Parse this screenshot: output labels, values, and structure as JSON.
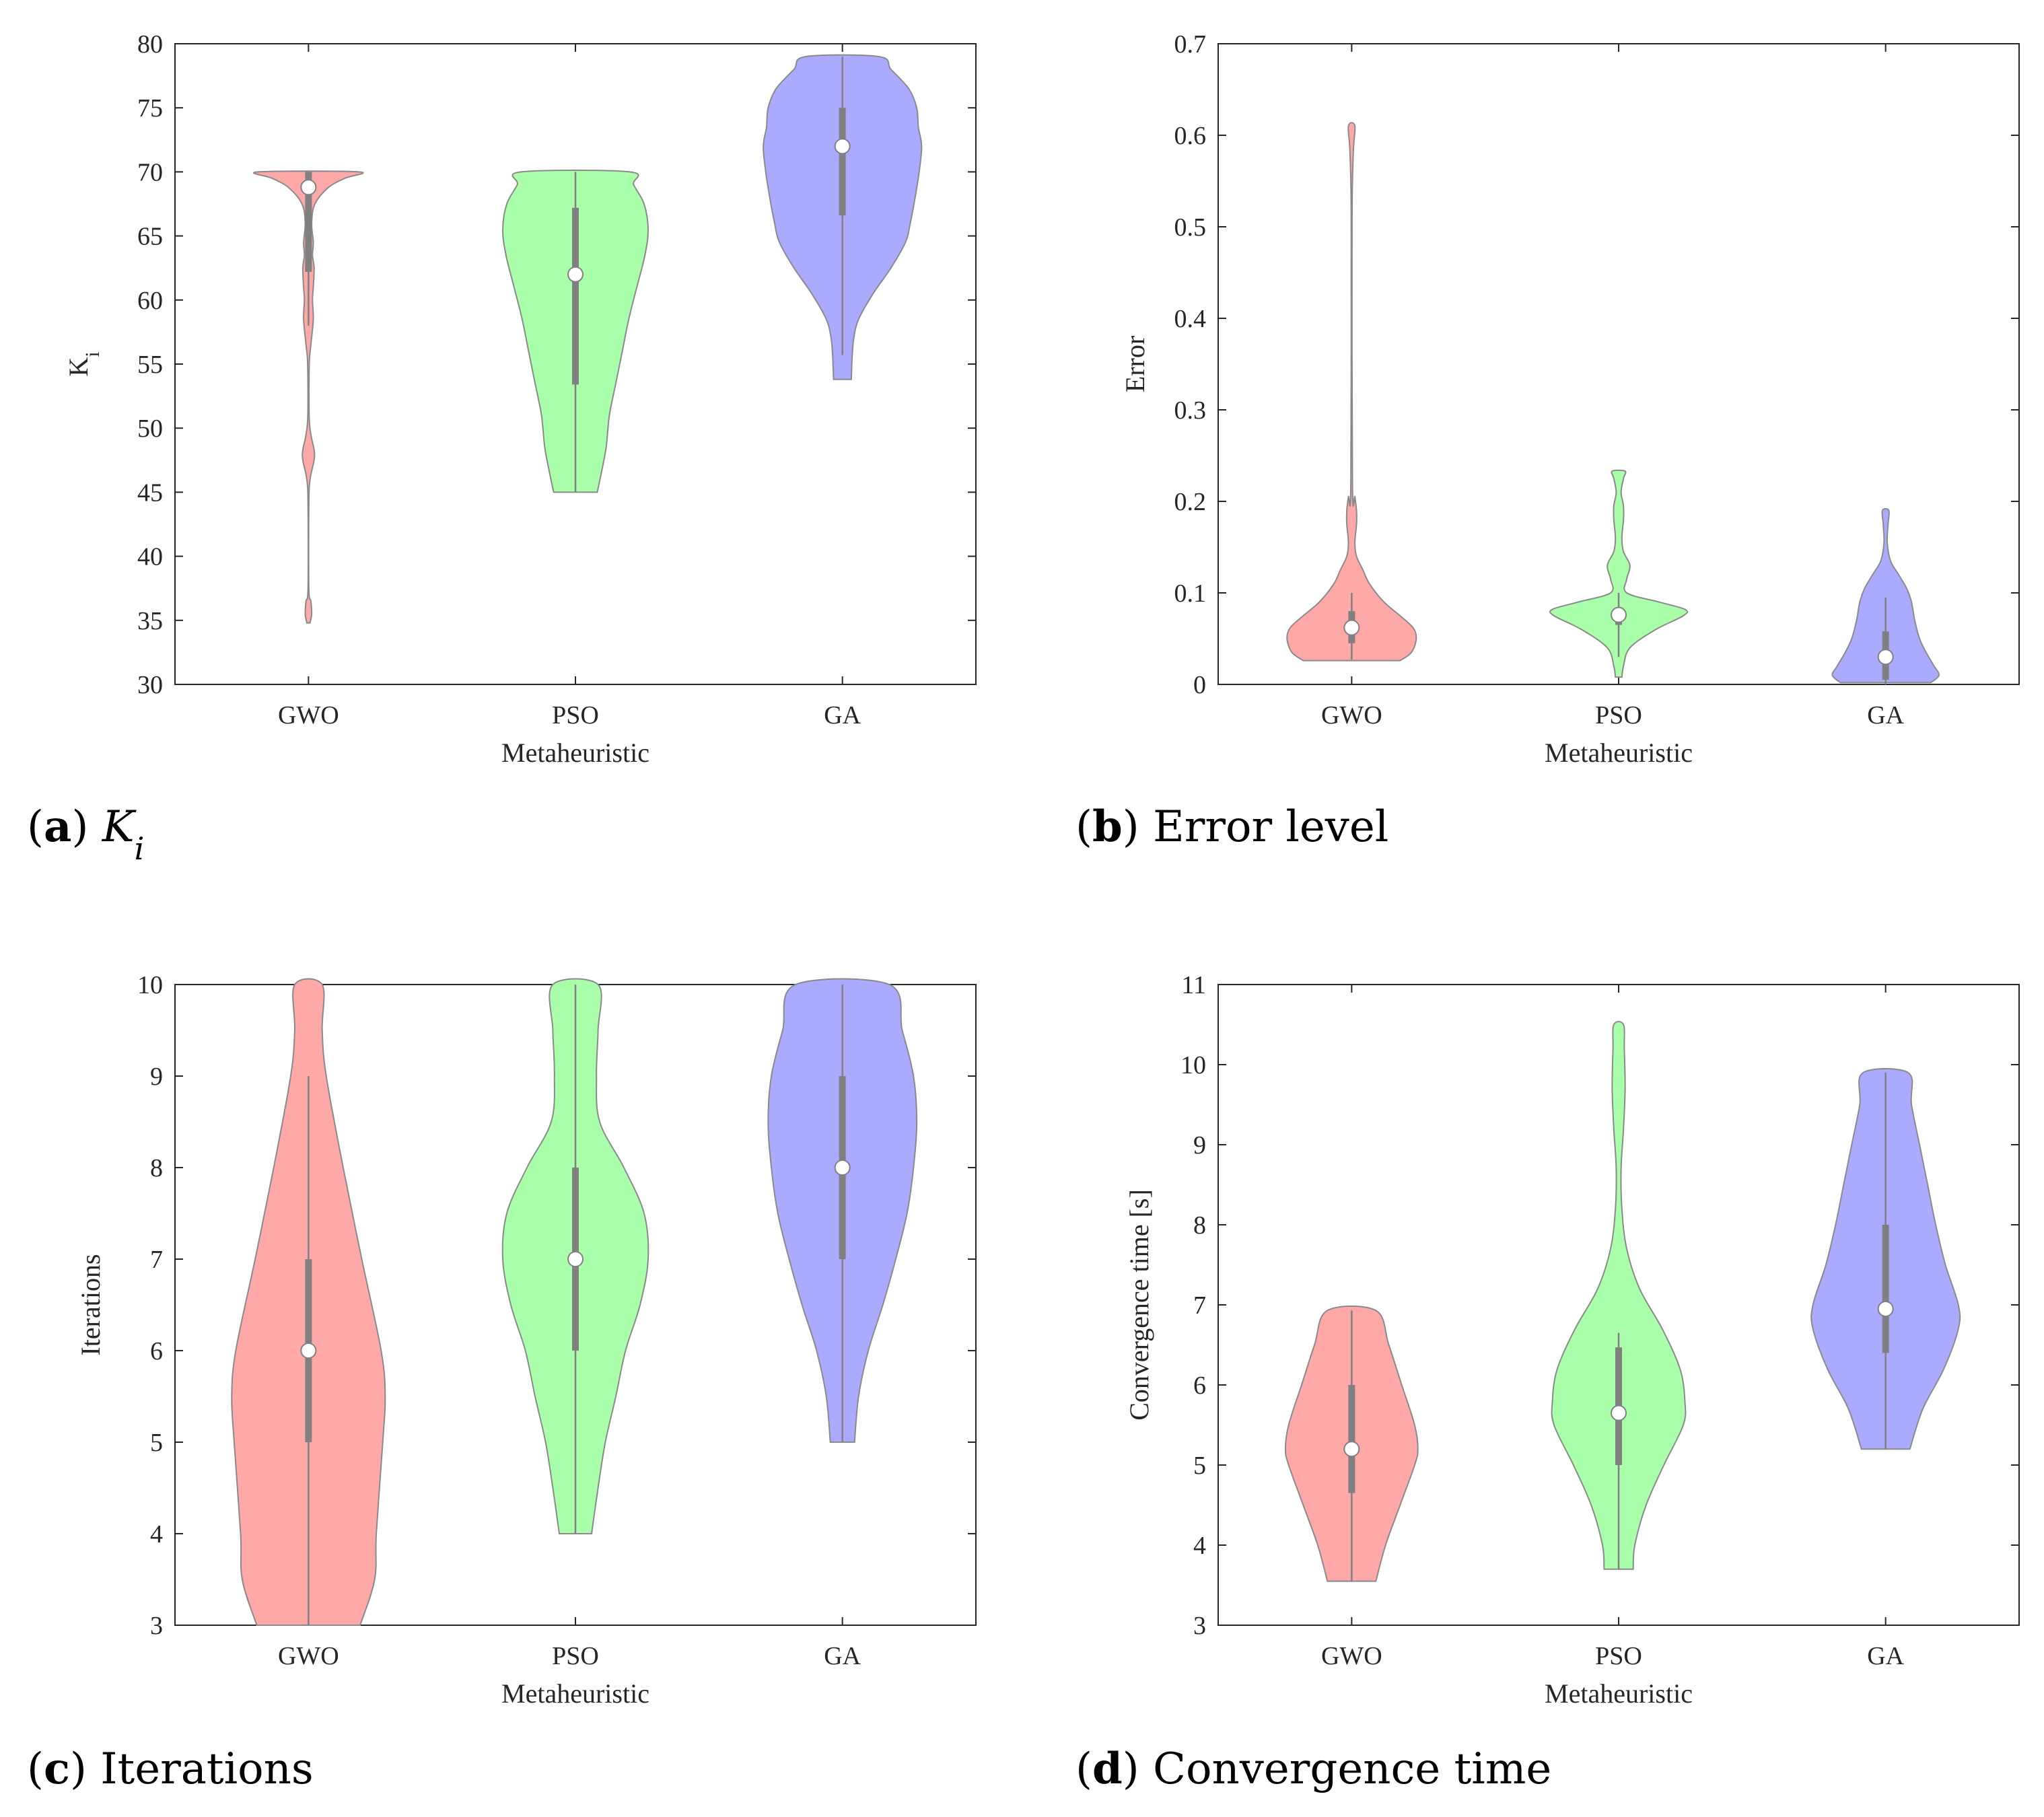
{
  "colors": {
    "GWO": "#ffa8a8",
    "PSO": "#aaffaa",
    "GA": "#aaaaff",
    "violin_edge": "#8a8a8a",
    "box": "#808080",
    "median_fill": "#ffffff",
    "axes": "#262626"
  },
  "chart_data": [
    {
      "type": "violin",
      "panel": "a",
      "caption_letter": "a",
      "caption_text": "K",
      "caption_subscript": "i",
      "xlabel": "Metaheuristic",
      "ylabel": "K",
      "ylabel_subscript": "i",
      "categories": [
        "GWO",
        "PSO",
        "GA"
      ],
      "ylim": [
        30,
        80
      ],
      "yticks": [
        30,
        35,
        40,
        45,
        50,
        55,
        60,
        65,
        70,
        75,
        80
      ],
      "ytick_labels": [
        "30",
        "35",
        "40",
        "45",
        "50",
        "55",
        "60",
        "65",
        "70",
        "75",
        "80"
      ],
      "series": [
        {
          "category": "GWO",
          "median": 68.8,
          "q1": 62.2,
          "q3": 70,
          "whisker_low": 58,
          "whisker_high": 70,
          "profile": [
            [
              34.8,
              0.02
            ],
            [
              35.5,
              0.04
            ],
            [
              36.5,
              0.03
            ],
            [
              37.5,
              0.005
            ],
            [
              44,
              0.005
            ],
            [
              46,
              0.02
            ],
            [
              47.5,
              0.07
            ],
            [
              48.3,
              0.07
            ],
            [
              49.5,
              0.03
            ],
            [
              51,
              0.008
            ],
            [
              55,
              0.01
            ],
            [
              56.5,
              0.03
            ],
            [
              58.5,
              0.06
            ],
            [
              60,
              0.05
            ],
            [
              61,
              0.06
            ],
            [
              62.5,
              0.07
            ],
            [
              63.5,
              0.05
            ],
            [
              64.5,
              0.06
            ],
            [
              66,
              0.04
            ],
            [
              67.5,
              0.08
            ],
            [
              68.8,
              0.25
            ],
            [
              69.5,
              0.45
            ],
            [
              70,
              0.62
            ]
          ]
        },
        {
          "category": "PSO",
          "median": 62,
          "q1": 53.4,
          "q3": 67.2,
          "whisker_low": 45,
          "whisker_high": 70,
          "profile": [
            [
              45,
              0.27
            ],
            [
              46.5,
              0.32
            ],
            [
              48.5,
              0.38
            ],
            [
              51,
              0.42
            ],
            [
              53.5,
              0.5
            ],
            [
              56,
              0.58
            ],
            [
              58.5,
              0.66
            ],
            [
              61,
              0.76
            ],
            [
              63.5,
              0.86
            ],
            [
              65.5,
              0.9
            ],
            [
              67.5,
              0.85
            ],
            [
              69,
              0.72
            ],
            [
              70,
              0.67
            ]
          ]
        },
        {
          "category": "GA",
          "median": 72,
          "q1": 66.6,
          "q3": 75,
          "whisker_low": 55.7,
          "whisker_high": 79,
          "profile": [
            [
              53.8,
              0.11
            ],
            [
              55.5,
              0.12
            ],
            [
              57,
              0.14
            ],
            [
              58.5,
              0.2
            ],
            [
              60.5,
              0.38
            ],
            [
              62.5,
              0.6
            ],
            [
              64.5,
              0.78
            ],
            [
              66,
              0.84
            ],
            [
              68,
              0.9
            ],
            [
              70,
              0.95
            ],
            [
              72,
              0.98
            ],
            [
              73.5,
              0.94
            ],
            [
              75,
              0.92
            ],
            [
              76.5,
              0.82
            ],
            [
              78,
              0.6
            ],
            [
              79,
              0.45
            ]
          ]
        }
      ]
    },
    {
      "type": "violin",
      "panel": "b",
      "caption_letter": "b",
      "caption_text": "Error level",
      "xlabel": "Metaheuristic",
      "ylabel": "Error",
      "categories": [
        "GWO",
        "PSO",
        "GA"
      ],
      "ylim": [
        0,
        0.7
      ],
      "yticks": [
        0,
        0.1,
        0.2,
        0.3,
        0.4,
        0.5,
        0.6,
        0.7
      ],
      "ytick_labels": [
        "0",
        "0.1",
        "0.2",
        "0.3",
        "0.4",
        "0.5",
        "0.6",
        "0.7"
      ],
      "series": [
        {
          "category": "GWO",
          "median": 0.062,
          "q1": 0.045,
          "q3": 0.08,
          "whisker_low": 0.027,
          "whisker_high": 0.1,
          "profile": [
            [
              0.026,
              0.6
            ],
            [
              0.035,
              0.74
            ],
            [
              0.05,
              0.8
            ],
            [
              0.062,
              0.76
            ],
            [
              0.075,
              0.6
            ],
            [
              0.09,
              0.4
            ],
            [
              0.11,
              0.22
            ],
            [
              0.125,
              0.14
            ],
            [
              0.14,
              0.06
            ],
            [
              0.155,
              0.04
            ],
            [
              0.175,
              0.06
            ],
            [
              0.19,
              0.06
            ],
            [
              0.205,
              0.04
            ],
            [
              0.22,
              0.01
            ],
            [
              0.5,
              0.005
            ],
            [
              0.58,
              0.02
            ],
            [
              0.61,
              0.04
            ]
          ]
        },
        {
          "category": "PSO",
          "median": 0.076,
          "q1": 0.065,
          "q3": 0.082,
          "whisker_low": 0.03,
          "whisker_high": 0.1,
          "profile": [
            [
              0.008,
              0.04
            ],
            [
              0.02,
              0.06
            ],
            [
              0.04,
              0.14
            ],
            [
              0.06,
              0.46
            ],
            [
              0.075,
              0.8
            ],
            [
              0.082,
              0.82
            ],
            [
              0.09,
              0.5
            ],
            [
              0.1,
              0.1
            ],
            [
              0.115,
              0.1
            ],
            [
              0.13,
              0.14
            ],
            [
              0.145,
              0.06
            ],
            [
              0.16,
              0.04
            ],
            [
              0.18,
              0.06
            ],
            [
              0.195,
              0.06
            ],
            [
              0.21,
              0.03
            ],
            [
              0.225,
              0.06
            ],
            [
              0.233,
              0.08
            ]
          ]
        },
        {
          "category": "GA",
          "median": 0.03,
          "q1": 0.005,
          "q3": 0.058,
          "whisker_low": 0,
          "whisker_high": 0.095,
          "profile": [
            [
              0.002,
              0.56
            ],
            [
              0.01,
              0.66
            ],
            [
              0.02,
              0.6
            ],
            [
              0.035,
              0.5
            ],
            [
              0.05,
              0.42
            ],
            [
              0.07,
              0.36
            ],
            [
              0.09,
              0.32
            ],
            [
              0.105,
              0.26
            ],
            [
              0.12,
              0.16
            ],
            [
              0.135,
              0.06
            ],
            [
              0.155,
              0.02
            ],
            [
              0.175,
              0.03
            ],
            [
              0.19,
              0.04
            ]
          ]
        }
      ]
    },
    {
      "type": "violin",
      "panel": "c",
      "caption_letter": "c",
      "caption_text": "Iterations",
      "xlabel": "Metaheuristic",
      "ylabel": "Iterations",
      "categories": [
        "GWO",
        "PSO",
        "GA"
      ],
      "ylim": [
        3,
        10
      ],
      "yticks": [
        3,
        4,
        5,
        6,
        7,
        8,
        9,
        10
      ],
      "ytick_labels": [
        "3",
        "4",
        "5",
        "6",
        "7",
        "8",
        "9",
        "10"
      ],
      "series": [
        {
          "category": "GWO",
          "median": 6,
          "q1": 5,
          "q3": 7,
          "whisker_low": 3,
          "whisker_high": 9,
          "profile": [
            [
              3,
              0.64
            ],
            [
              3.5,
              0.82
            ],
            [
              4,
              0.84
            ],
            [
              5,
              0.92
            ],
            [
              5.5,
              0.95
            ],
            [
              6,
              0.9
            ],
            [
              7,
              0.66
            ],
            [
              8,
              0.43
            ],
            [
              9,
              0.22
            ],
            [
              9.5,
              0.17
            ],
            [
              10,
              0.17
            ]
          ]
        },
        {
          "category": "PSO",
          "median": 7,
          "q1": 6,
          "q3": 8,
          "whisker_low": 4,
          "whisker_high": 10,
          "profile": [
            [
              4,
              0.2
            ],
            [
              4.5,
              0.28
            ],
            [
              5,
              0.37
            ],
            [
              5.5,
              0.5
            ],
            [
              6,
              0.62
            ],
            [
              6.5,
              0.8
            ],
            [
              7,
              0.9
            ],
            [
              7.5,
              0.85
            ],
            [
              8,
              0.6
            ],
            [
              8.5,
              0.3
            ],
            [
              9,
              0.26
            ],
            [
              9.5,
              0.28
            ],
            [
              10,
              0.28
            ]
          ]
        },
        {
          "category": "GA",
          "median": 8,
          "q1": 7,
          "q3": 9,
          "whisker_low": 5,
          "whisker_high": 10,
          "profile": [
            [
              5,
              0.15
            ],
            [
              5.5,
              0.2
            ],
            [
              6,
              0.32
            ],
            [
              6.5,
              0.5
            ],
            [
              7,
              0.66
            ],
            [
              7.5,
              0.8
            ],
            [
              8,
              0.88
            ],
            [
              8.5,
              0.92
            ],
            [
              9,
              0.88
            ],
            [
              9.5,
              0.74
            ],
            [
              10,
              0.58
            ]
          ]
        }
      ]
    },
    {
      "type": "violin",
      "panel": "d",
      "caption_letter": "d",
      "caption_text": "Convergence time",
      "xlabel": "Metaheuristic",
      "ylabel": "Convergence time [s]",
      "categories": [
        "GWO",
        "PSO",
        "GA"
      ],
      "ylim": [
        3,
        11
      ],
      "yticks": [
        3,
        4,
        5,
        6,
        7,
        8,
        9,
        10,
        11
      ],
      "ytick_labels": [
        "3",
        "4",
        "5",
        "6",
        "7",
        "8",
        "9",
        "10",
        "11"
      ],
      "series": [
        {
          "category": "GWO",
          "median": 5.2,
          "q1": 4.65,
          "q3": 6,
          "whisker_low": 3.55,
          "whisker_high": 6.93,
          "profile": [
            [
              3.55,
              0.3
            ],
            [
              4,
              0.42
            ],
            [
              4.5,
              0.6
            ],
            [
              5,
              0.78
            ],
            [
              5.2,
              0.82
            ],
            [
              5.5,
              0.78
            ],
            [
              6,
              0.62
            ],
            [
              6.5,
              0.46
            ],
            [
              6.93,
              0.3
            ]
          ]
        },
        {
          "category": "PSO",
          "median": 5.65,
          "q1": 5,
          "q3": 6.47,
          "whisker_low": 3.7,
          "whisker_high": 6.65,
          "profile": [
            [
              3.7,
              0.18
            ],
            [
              4,
              0.2
            ],
            [
              4.5,
              0.34
            ],
            [
              5,
              0.56
            ],
            [
              5.5,
              0.8
            ],
            [
              5.8,
              0.82
            ],
            [
              6.2,
              0.76
            ],
            [
              6.7,
              0.54
            ],
            [
              7.2,
              0.26
            ],
            [
              7.7,
              0.1
            ],
            [
              8.2,
              0.04
            ],
            [
              8.7,
              0.03
            ],
            [
              9.2,
              0.06
            ],
            [
              9.7,
              0.08
            ],
            [
              10.2,
              0.07
            ],
            [
              10.5,
              0.06
            ]
          ]
        },
        {
          "category": "GA",
          "median": 6.95,
          "q1": 6.4,
          "q3": 8,
          "whisker_low": 5.2,
          "whisker_high": 9.9,
          "profile": [
            [
              5.2,
              0.3
            ],
            [
              5.7,
              0.46
            ],
            [
              6.2,
              0.72
            ],
            [
              6.7,
              0.9
            ],
            [
              7,
              0.9
            ],
            [
              7.5,
              0.74
            ],
            [
              8,
              0.62
            ],
            [
              8.5,
              0.52
            ],
            [
              9,
              0.42
            ],
            [
              9.5,
              0.32
            ],
            [
              9.9,
              0.28
            ]
          ]
        }
      ]
    }
  ]
}
